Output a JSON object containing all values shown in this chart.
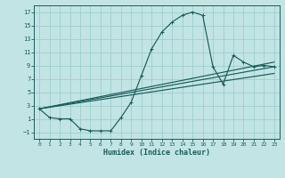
{
  "xlabel": "Humidex (Indice chaleur)",
  "bg_color": "#c2e4e4",
  "grid_color": "#9ecece",
  "line_color": "#1a5c5c",
  "xlim": [
    -0.5,
    23.5
  ],
  "ylim": [
    -2.0,
    18.0
  ],
  "xticks": [
    0,
    1,
    2,
    3,
    4,
    5,
    6,
    7,
    8,
    9,
    10,
    11,
    12,
    13,
    14,
    15,
    16,
    17,
    18,
    19,
    20,
    21,
    22,
    23
  ],
  "yticks": [
    -1,
    1,
    3,
    5,
    7,
    9,
    11,
    13,
    15,
    17
  ],
  "curve1_x": [
    0,
    1,
    2,
    3,
    4,
    5,
    6,
    7,
    8,
    9,
    10,
    11,
    12,
    13,
    14,
    15,
    16,
    17,
    18,
    19,
    20,
    21,
    22,
    23
  ],
  "curve1_y": [
    2.5,
    1.2,
    1.0,
    1.0,
    -0.5,
    -0.8,
    -0.8,
    -0.8,
    1.2,
    3.5,
    7.5,
    11.5,
    14.0,
    15.5,
    16.5,
    17.0,
    16.5,
    8.8,
    6.2,
    10.5,
    9.5,
    8.8,
    9.0,
    8.8
  ],
  "line1_x": [
    0,
    23
  ],
  "line1_y": [
    2.5,
    9.5
  ],
  "line2_x": [
    0,
    23
  ],
  "line2_y": [
    2.5,
    7.8
  ],
  "line3_x": [
    0,
    23
  ],
  "line3_y": [
    2.5,
    8.8
  ]
}
